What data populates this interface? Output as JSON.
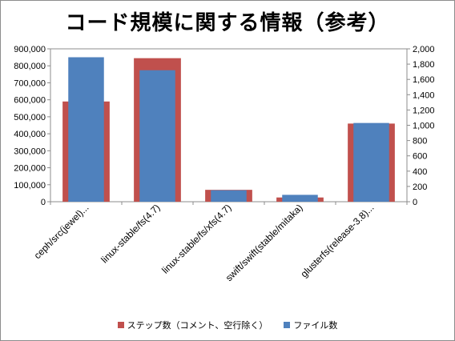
{
  "title": "コード規模に関する情報（参考）",
  "chart_data": {
    "type": "bar",
    "categories": [
      "ceph/src(jewel)...",
      "linux-stable/fs(4.7)",
      "linux-stable/fs/xfs(4.7)",
      "swift/swift(stable/mitaka)",
      "glusterfs(release-3.8)..."
    ],
    "series": [
      {
        "name": "ステップ数（コメント、空行除く）",
        "axis": "left",
        "color": "#c0504d",
        "values": [
          590000,
          845000,
          70000,
          25000,
          460000
        ]
      },
      {
        "name": "ファイル数",
        "axis": "right",
        "color": "#4f81bd",
        "values": [
          1890,
          1720,
          150,
          90,
          1030
        ]
      }
    ],
    "y_left": {
      "min": 0,
      "max": 900000,
      "ticks": [
        0,
        100000,
        200000,
        300000,
        400000,
        500000,
        600000,
        700000,
        800000,
        900000
      ],
      "tick_labels": [
        "0",
        "100,000",
        "200,000",
        "300,000",
        "400,000",
        "500,000",
        "600,000",
        "700,000",
        "800,000",
        "900,000"
      ]
    },
    "y_right": {
      "min": 0,
      "max": 2000,
      "ticks": [
        0,
        200,
        400,
        600,
        800,
        1000,
        1200,
        1400,
        1600,
        1800,
        2000
      ],
      "tick_labels": [
        "0",
        "200",
        "400",
        "600",
        "800",
        "1,000",
        "1,200",
        "1,400",
        "1,600",
        "1,800",
        "2,000"
      ]
    },
    "grid": false,
    "legend_position": "bottom"
  }
}
